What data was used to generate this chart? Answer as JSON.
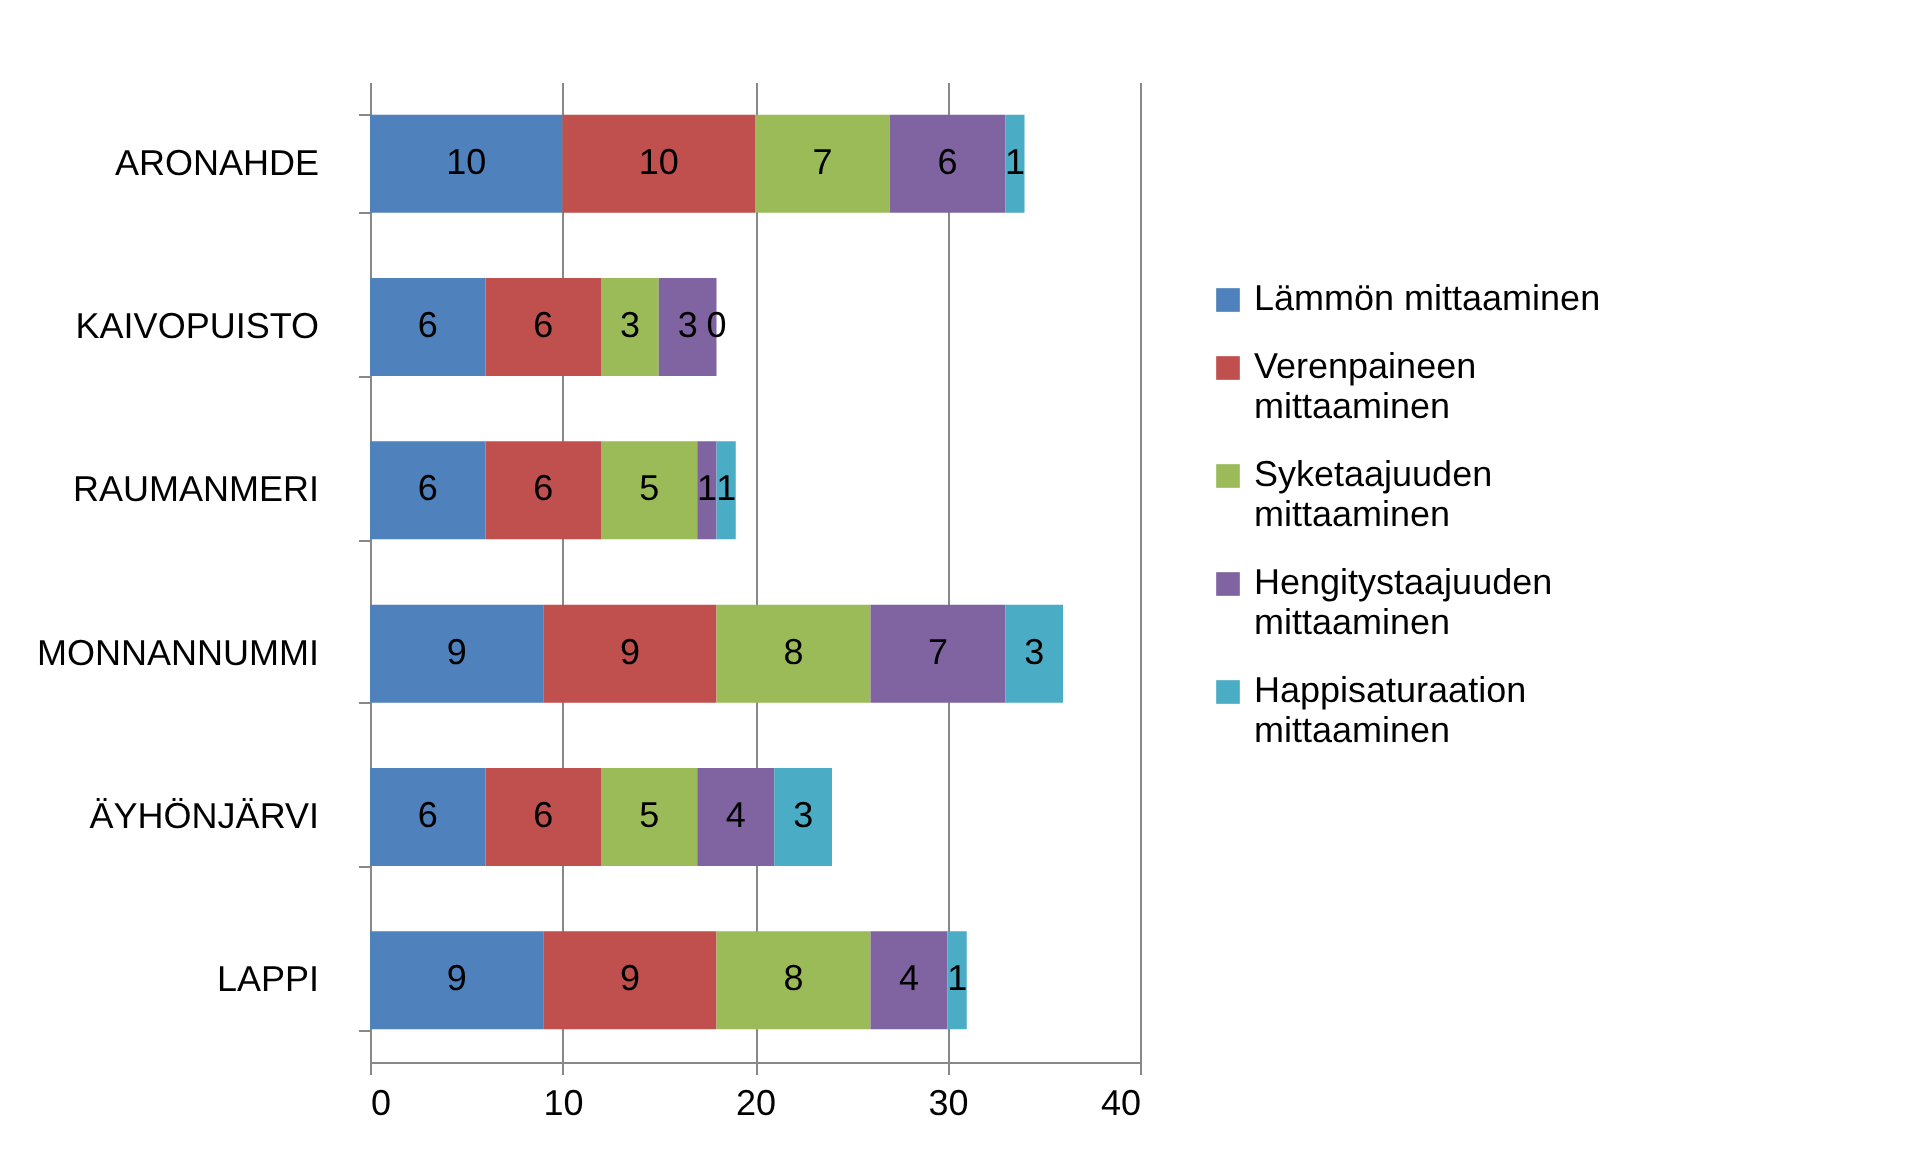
{
  "chart_data": {
    "type": "bar",
    "orientation": "horizontal",
    "stacked": true,
    "data_labels": true,
    "grid": "x",
    "legend": "right",
    "categories": [
      "ARONAHDE",
      "KAIVOPUISTO",
      "RAUMANMERI",
      "MONNANNUMMI",
      "ÄYHÖNJÄRVI",
      "LAPPI"
    ],
    "xlim": [
      0,
      40
    ],
    "xticks": [
      0,
      10,
      20,
      30,
      40
    ],
    "series": [
      {
        "name": "Lämmön mittaaminen",
        "color": "#4f81bd",
        "values": [
          10,
          6,
          6,
          9,
          6,
          9
        ]
      },
      {
        "name": "Verenpaineen mittaaminen",
        "color": "#c0504d",
        "values": [
          10,
          6,
          6,
          9,
          6,
          9
        ]
      },
      {
        "name": "Syketaajuuden mittaaminen",
        "color": "#9bbb59",
        "values": [
          7,
          3,
          5,
          8,
          5,
          8
        ]
      },
      {
        "name": "Hengitystaajuuden mittaaminen",
        "color": "#8064a2",
        "values": [
          6,
          3,
          1,
          7,
          4,
          4
        ]
      },
      {
        "name": "Happisaturaation mittaaminen",
        "color": "#4bacc6",
        "values": [
          1,
          0,
          1,
          3,
          3,
          1
        ]
      }
    ]
  }
}
